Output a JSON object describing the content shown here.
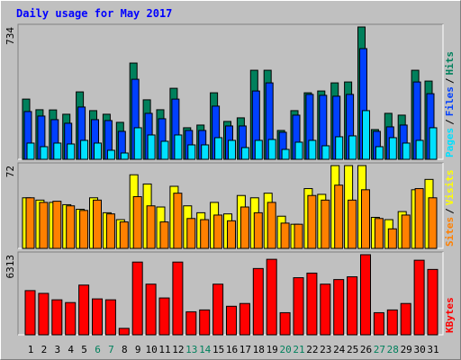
{
  "chart_data": [
    {
      "type": "bar",
      "title": "Daily usage for May 2017",
      "legend_separator": "/",
      "ylim": [
        0,
        734
      ],
      "yticks": [
        734
      ],
      "series": [
        {
          "name": "Hits",
          "color": "#00805c",
          "values": [
            334,
            275,
            274,
            250,
            374,
            270,
            250,
            205,
            534,
            330,
            275,
            394,
            175,
            190,
            369,
            210,
            230,
            494,
            494,
            160,
            270,
            369,
            379,
            424,
            429,
            734,
            165,
            255,
            245,
            494,
            434
          ]
        },
        {
          "name": "Files",
          "color": "#0040ff",
          "values": [
            265,
            240,
            220,
            200,
            290,
            220,
            215,
            155,
            444,
            255,
            225,
            334,
            160,
            160,
            295,
            185,
            185,
            379,
            424,
            150,
            245,
            360,
            355,
            350,
            360,
            614,
            155,
            180,
            190,
            429,
            364
          ]
        },
        {
          "name": "Pages",
          "color": "#00e0ff",
          "values": [
            90,
            70,
            90,
            85,
            105,
            90,
            50,
            35,
            175,
            135,
            100,
            135,
            80,
            80,
            120,
            105,
            65,
            105,
            110,
            55,
            95,
            105,
            75,
            125,
            130,
            270,
            70,
            120,
            90,
            105,
            175
          ]
        }
      ]
    },
    {
      "type": "bar",
      "legend_separator": "/",
      "ylim": [
        0,
        72
      ],
      "yticks": [
        72
      ],
      "series": [
        {
          "name": "Visits",
          "color": "#ffff00",
          "values": [
            44,
            42,
            40,
            38,
            34,
            44,
            31,
            25,
            64,
            56,
            36,
            54,
            37,
            31,
            40,
            30,
            46,
            44,
            48,
            28,
            21,
            52,
            47,
            72,
            72,
            72,
            27,
            25,
            32,
            51,
            60
          ]
        },
        {
          "name": "Sites",
          "color": "#ff8000",
          "values": [
            44,
            40,
            41,
            37,
            33,
            42,
            30,
            23,
            45,
            37,
            23,
            48,
            26,
            25,
            29,
            24,
            36,
            31,
            40,
            22,
            21,
            46,
            42,
            55,
            42,
            51,
            26,
            17,
            29,
            52,
            44
          ]
        }
      ]
    },
    {
      "type": "bar",
      "ylim": [
        0,
        6313
      ],
      "yticks": [
        6313
      ],
      "categories": [
        "1",
        "2",
        "3",
        "4",
        "5",
        "6",
        "7",
        "8",
        "9",
        "10",
        "11",
        "12",
        "13",
        "14",
        "15",
        "16",
        "17",
        "18",
        "19",
        "20",
        "21",
        "22",
        "23",
        "24",
        "25",
        "26",
        "27",
        "28",
        "29",
        "30",
        "31"
      ],
      "category_colors": [
        "#000000",
        "#000000",
        "#000000",
        "#000000",
        "#000000",
        "#00805c",
        "#00805c",
        "#000000",
        "#000000",
        "#000000",
        "#000000",
        "#000000",
        "#00805c",
        "#00805c",
        "#000000",
        "#000000",
        "#000000",
        "#000000",
        "#000000",
        "#00805c",
        "#00805c",
        "#000000",
        "#000000",
        "#000000",
        "#000000",
        "#000000",
        "#00805c",
        "#00805c",
        "#000000",
        "#000000",
        "#000000"
      ],
      "series": [
        {
          "name": "KBytes",
          "color": "#ff0000",
          "values": [
            3483,
            3265,
            2757,
            2540,
            3918,
            2830,
            2757,
            508,
            5732,
            3991,
            2903,
            5732,
            1814,
            1959,
            3991,
            2249,
            2467,
            5224,
            5950,
            1742,
            4499,
            4862,
            3991,
            4354,
            4571,
            6313,
            1742,
            1959,
            2467,
            5878,
            5152
          ]
        }
      ]
    }
  ]
}
